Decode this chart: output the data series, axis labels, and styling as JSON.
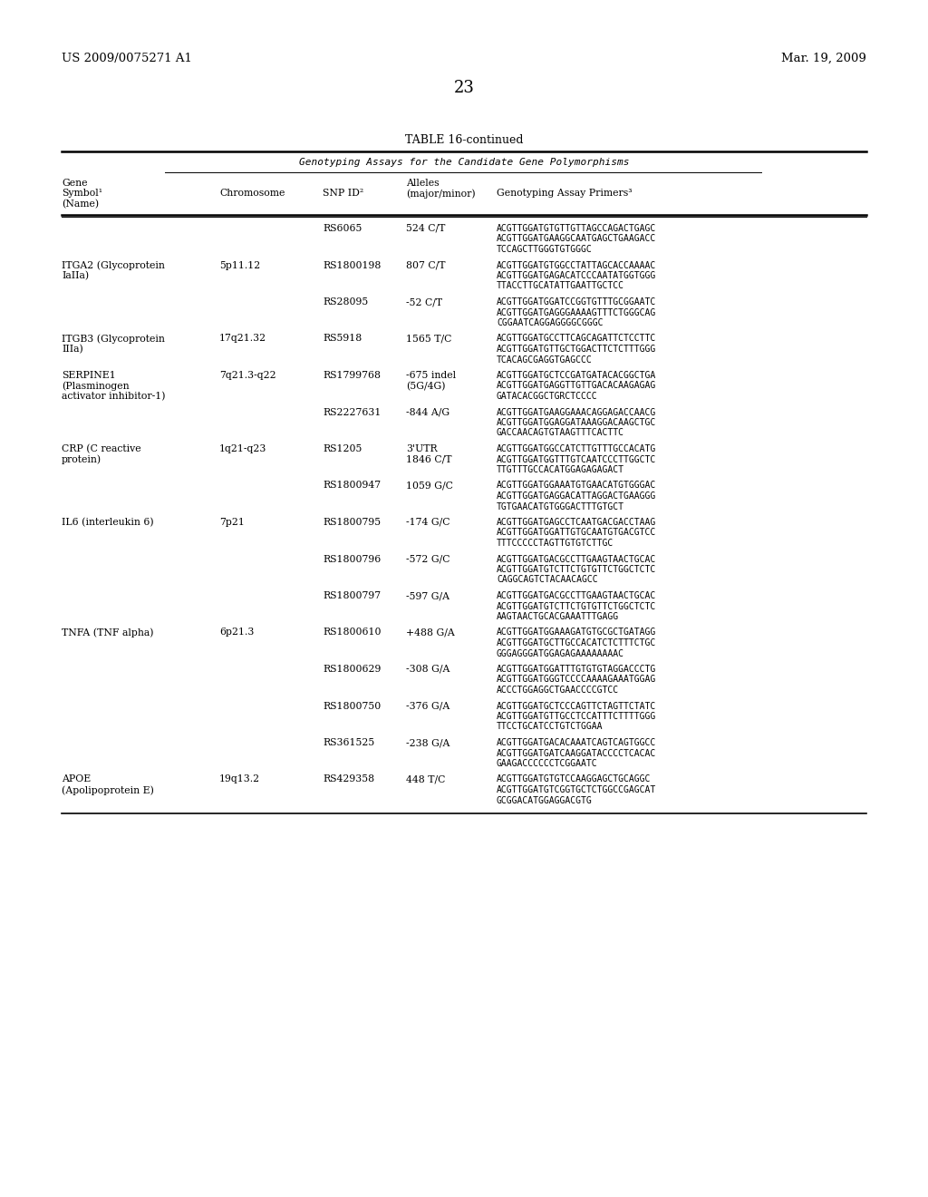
{
  "page_left": "US 2009/0075271 A1",
  "page_right": "Mar. 19, 2009",
  "page_number": "23",
  "table_title": "TABLE 16-continued",
  "table_subtitle": "Genotyping Assays for the Candidate Gene Polymorphisms",
  "rows": [
    {
      "gene": "",
      "chromosome": "",
      "snp_id": "RS6065",
      "alleles": "524 C/T",
      "primers": "ACGTTGGATGTGTTGTTAGCCAGACTGAGC\nACGTTGGATGAAGGCAATGAGCTGAAGACC\nTCCAGCTTGGGTGTGGGC"
    },
    {
      "gene": "ITGA2 (Glycoprotein\nIaIIa)",
      "chromosome": "5p11.12",
      "snp_id": "RS1800198",
      "alleles": "807 C/T",
      "primers": "ACGTTGGATGTGGCCTATTAGCACCAAAAC\nACGTTGGATGAGACATCCCAATATGGTGGG\nTTACCTTGCATATTGAATTGCTCC"
    },
    {
      "gene": "",
      "chromosome": "",
      "snp_id": "RS28095",
      "alleles": "-52 C/T",
      "primers": "ACGTTGGATGGATCCGGTGTTTGCGGAATC\nACGTTGGATGAGGGAAAAGTTTCTGGGCAG\nCGGAATCAGGAGGGGCGGGC"
    },
    {
      "gene": "ITGB3 (Glycoprotein\nIIIa)",
      "chromosome": "17q21.32",
      "snp_id": "RS5918",
      "alleles": "1565 T/C",
      "primers": "ACGTTGGATGCCTTCAGCAGATTCTCCTTC\nACGTTGGATGTTGCTGGACTTCTCTTTGGG\nTCACAGCGAGGTGAGCCC"
    },
    {
      "gene": "SERPINE1\n(Plasminogen\nactivator inhibitor-1)",
      "chromosome": "7q21.3-q22",
      "snp_id": "RS1799768",
      "alleles": "-675 indel\n(5G/4G)",
      "primers": "ACGTTGGATGCTCCGATGATACACGGCTGA\nACGTTGGATGAGGTTGTTGACACAAGAGAG\nGATACACGGCTGRCTCCCC"
    },
    {
      "gene": "",
      "chromosome": "",
      "snp_id": "RS2227631",
      "alleles": "-844 A/G",
      "primers": "ACGTTGGATGAAGGAAACAGGAGACCAACG\nACGTTGGATGGAGGATAAAGGACAAGCTGC\nGACCAACAGTGTAAGTTTCACTTC"
    },
    {
      "gene": "CRP (C reactive\nprotein)",
      "chromosome": "1q21-q23",
      "snp_id": "RS1205",
      "alleles": "3'UTR\n1846 C/T",
      "primers": "ACGTTGGATGGCCATCTTGTTTGCCACATG\nACGTTGGATGGTTTGTCAATCCCTTGGCTC\nTTGTTTGCCACATGGAGAGAGACT"
    },
    {
      "gene": "",
      "chromosome": "",
      "snp_id": "RS1800947",
      "alleles": "1059 G/C",
      "primers": "ACGTTGGATGGAAATGTGAACATGTGGGAC\nACGTTGGATGAGGACATTAGGACTGAAGGG\nTGTGAACATGTGGGACTTTGTGCT"
    },
    {
      "gene": "IL6 (interleukin 6)",
      "chromosome": "7p21",
      "snp_id": "RS1800795",
      "alleles": "-174 G/C",
      "primers": "ACGTTGGATGAGCCTCAATGACGACCTAAG\nACGTTGGATGGATTGTGCAATGTGACGTCC\nTTTCCCCCTAGTTGTGTCTTGC"
    },
    {
      "gene": "",
      "chromosome": "",
      "snp_id": "RS1800796",
      "alleles": "-572 G/C",
      "primers": "ACGTTGGATGACGCCTTGAAGTAACTGCAC\nACGTTGGATGTCTTCTGTGTTCTGGCTCTC\nCAGGCAGTCTACAACAGCC"
    },
    {
      "gene": "",
      "chromosome": "",
      "snp_id": "RS1800797",
      "alleles": "-597 G/A",
      "primers": "ACGTTGGATGACGCCTTGAAGTAACTGCAC\nACGTTGGATGTCTTCTGTGTTCTGGCTCTC\nAAGTAACTGCACGAAATTTGAGG"
    },
    {
      "gene": "TNFA (TNF alpha)",
      "chromosome": "6p21.3",
      "snp_id": "RS1800610",
      "alleles": "+488 G/A",
      "primers": "ACGTTGGATGGAAAGATGTGCGCTGATAGG\nACGTTGGATGCTTGCCACATCTCTTTCTGC\nGGGAGGGATGGAGAGAAAAAAAAC"
    },
    {
      "gene": "",
      "chromosome": "",
      "snp_id": "RS1800629",
      "alleles": "-308 G/A",
      "primers": "ACGTTGGATGGATTTGTGTGTAGGACCCTG\nACGTTGGATGGGTCCCCAAAAGAAATGGAG\nACCCTGGAGGCTGAACCCCGTCC"
    },
    {
      "gene": "",
      "chromosome": "",
      "snp_id": "RS1800750",
      "alleles": "-376 G/A",
      "primers": "ACGTTGGATGCTCCCAGTTCTAGTTCTATC\nACGTTGGATGTTGCCTCCATTTCTTTTGGG\nTTCCTGCATCCTGTCTGGAA"
    },
    {
      "gene": "",
      "chromosome": "",
      "snp_id": "RS361525",
      "alleles": "-238 G/A",
      "primers": "ACGTTGGATGACACAAATCAGTCAGTGGCC\nACGTTGGATGATCAAGGATACCCCTCACAC\nGAAGACCCCCCTCGGAATC"
    },
    {
      "gene": "APOE\n(Apolipoprotein E)",
      "chromosome": "19q13.2",
      "snp_id": "RS429358",
      "alleles": "448 T/C",
      "primers": "ACGTTGGATGTGTCCAAGGAGCTGCAGGC\nACGTTGGATGTCGGTGCTCTGGCCGAGCAT\nGCGGACATGGAGGACGTG"
    }
  ]
}
